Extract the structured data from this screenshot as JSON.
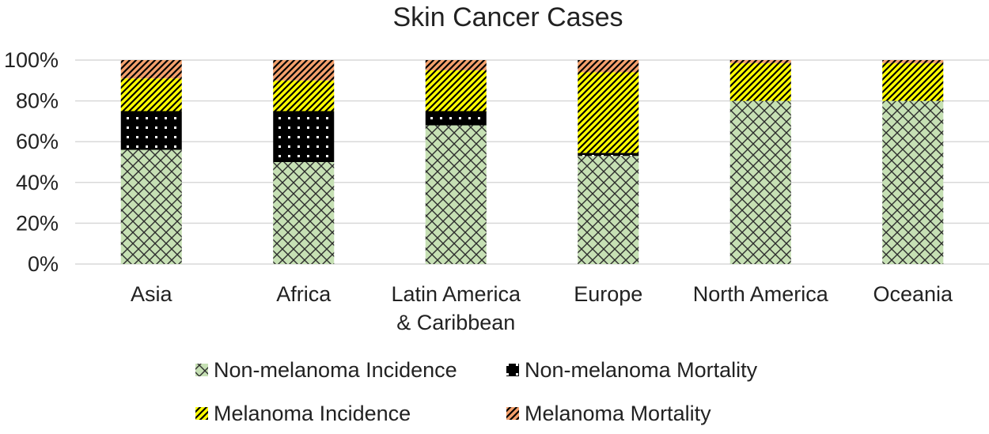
{
  "chart_data": {
    "type": "bar",
    "stacked": true,
    "percent_stacked": true,
    "title": "Skin Cancer Cases",
    "xlabel": "",
    "ylabel": "",
    "ylim": [
      0,
      100
    ],
    "yticks": [
      "0%",
      "20%",
      "40%",
      "60%",
      "80%",
      "100%"
    ],
    "grid": true,
    "legend_position": "bottom",
    "categories": [
      [
        "Asia"
      ],
      [
        "Africa"
      ],
      [
        "Latin America",
        "& Caribbean"
      ],
      [
        "Europe"
      ],
      [
        "North America"
      ],
      [
        "Oceania"
      ]
    ],
    "series": [
      {
        "name": "Non-melanoma Incidence",
        "pattern": "diamond-grid",
        "color": "#c6e0b4",
        "values": [
          56,
          50,
          68,
          53,
          80,
          80
        ]
      },
      {
        "name": "Non-melanoma Mortality",
        "pattern": "dots",
        "color": "#000000",
        "values": [
          19,
          25,
          7,
          1.5,
          0,
          0
        ]
      },
      {
        "name": "Melanoma Incidence",
        "pattern": "diagonal-stripes",
        "color": "#ffff00",
        "values": [
          16,
          15,
          20,
          39.5,
          18.5,
          18.5
        ]
      },
      {
        "name": "Melanoma Mortality",
        "pattern": "diagonal-stripes",
        "color": "#f4a06c",
        "values": [
          9,
          10,
          5,
          6,
          1.5,
          1.5
        ]
      }
    ]
  }
}
